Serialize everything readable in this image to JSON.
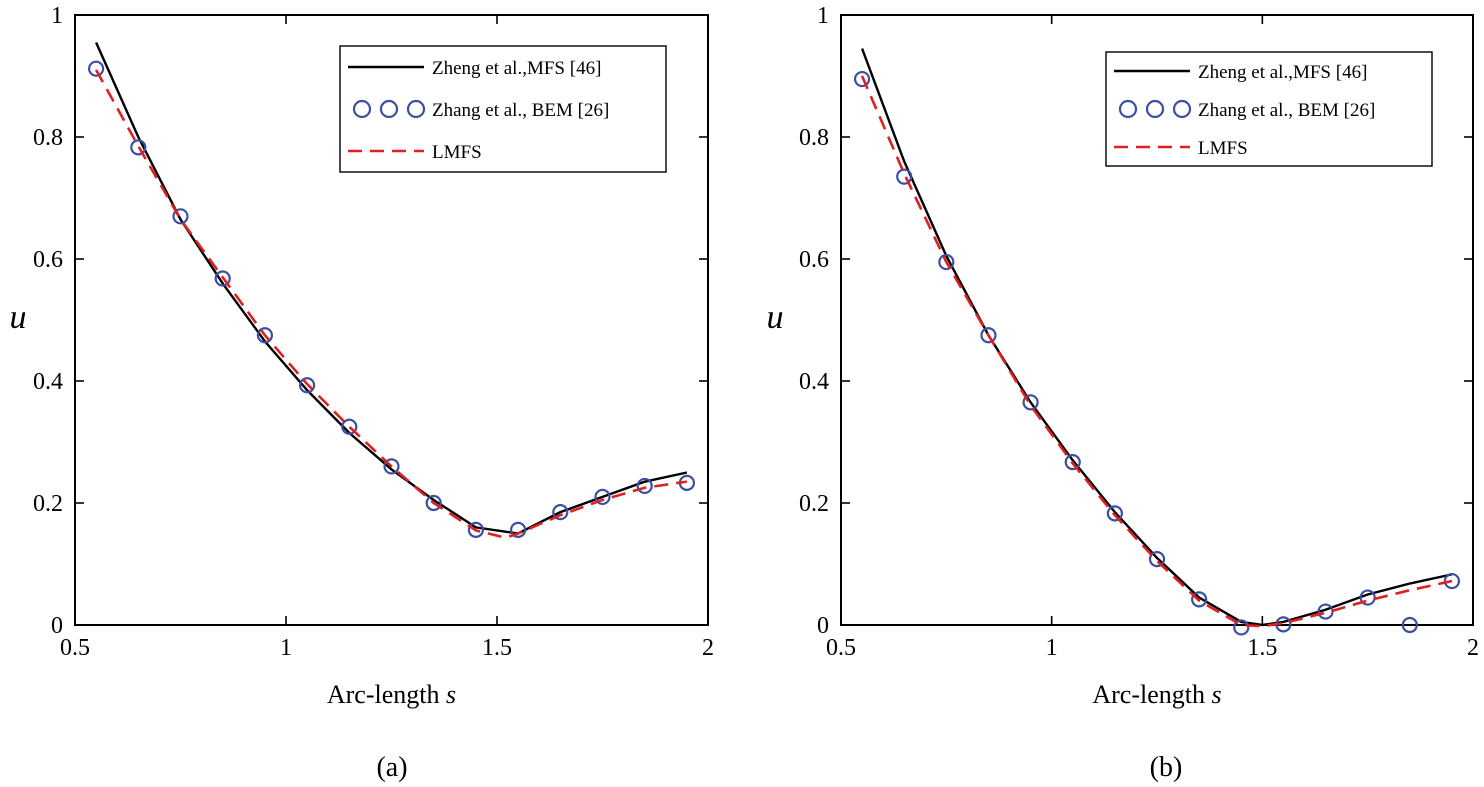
{
  "chart_data": [
    {
      "type": "line",
      "panel_label": "(a)",
      "xlabel": "Arc-length",
      "xlabel_var": "s",
      "ylabel": "u",
      "xlim": [
        0.5,
        2
      ],
      "ylim": [
        0,
        1
      ],
      "xticks": [
        "0.5",
        "1",
        "1.5",
        "2"
      ],
      "yticks": [
        "0",
        "0.2",
        "0.4",
        "0.6",
        "0.8",
        "1"
      ],
      "legend_position": "top-right",
      "series": [
        {
          "name": "Zheng et al.,MFS [46]",
          "style": "solid",
          "color": "#000000",
          "x": [
            0.55,
            0.65,
            0.75,
            0.85,
            0.95,
            1.05,
            1.15,
            1.25,
            1.35,
            1.45,
            1.55,
            1.65,
            1.75,
            1.85,
            1.95
          ],
          "y": [
            0.955,
            0.8,
            0.665,
            0.56,
            0.465,
            0.385,
            0.315,
            0.255,
            0.205,
            0.16,
            0.15,
            0.185,
            0.21,
            0.235,
            0.25
          ]
        },
        {
          "name": "Zhang et al., BEM [26]",
          "style": "circles",
          "color": "#3a4fa3",
          "x": [
            0.55,
            0.65,
            0.75,
            0.85,
            0.95,
            1.05,
            1.15,
            1.25,
            1.35,
            1.45,
            1.55,
            1.65,
            1.75,
            1.85,
            1.95
          ],
          "y": [
            0.912,
            0.783,
            0.67,
            0.568,
            0.475,
            0.393,
            0.325,
            0.26,
            0.2,
            0.156,
            0.156,
            0.185,
            0.21,
            0.228,
            0.233
          ]
        },
        {
          "name": "LMFS",
          "style": "dashed",
          "color": "#e02020",
          "x": [
            0.55,
            0.65,
            0.75,
            0.85,
            0.95,
            1.05,
            1.15,
            1.25,
            1.35,
            1.45,
            1.52,
            1.55,
            1.65,
            1.75,
            1.85,
            1.95
          ],
          "y": [
            0.91,
            0.785,
            0.665,
            0.57,
            0.475,
            0.395,
            0.325,
            0.26,
            0.2,
            0.155,
            0.143,
            0.15,
            0.18,
            0.205,
            0.225,
            0.235
          ]
        }
      ]
    },
    {
      "type": "line",
      "panel_label": "(b)",
      "xlabel": "Arc-length",
      "xlabel_var": "s",
      "ylabel": "u",
      "xlim": [
        0.5,
        2
      ],
      "ylim": [
        0,
        1
      ],
      "xticks": [
        "0.5",
        "1",
        "1.5",
        "2"
      ],
      "yticks": [
        "0",
        "0.2",
        "0.4",
        "0.6",
        "0.8",
        "1"
      ],
      "legend_position": "top-right",
      "series": [
        {
          "name": "Zheng et al.,MFS [46]",
          "style": "solid",
          "color": "#000000",
          "x": [
            0.55,
            0.65,
            0.75,
            0.85,
            0.95,
            1.05,
            1.15,
            1.25,
            1.35,
            1.45,
            1.5,
            1.55,
            1.65,
            1.75,
            1.85,
            1.95
          ],
          "y": [
            0.945,
            0.76,
            0.605,
            0.475,
            0.365,
            0.27,
            0.185,
            0.11,
            0.045,
            0.005,
            0.0,
            0.005,
            0.025,
            0.05,
            0.068,
            0.083
          ]
        },
        {
          "name": "Zhang et al., BEM [26]",
          "style": "circles",
          "color": "#3a4fa3",
          "x": [
            0.55,
            0.65,
            0.75,
            0.85,
            0.95,
            1.05,
            1.15,
            1.25,
            1.35,
            1.45,
            1.55,
            1.65,
            1.75,
            1.85,
            1.95
          ],
          "y": [
            0.895,
            0.735,
            0.595,
            0.475,
            0.365,
            0.267,
            0.183,
            0.108,
            0.042,
            -0.004,
            0.001,
            0.022,
            0.045,
            0.0,
            0.072
          ]
        },
        {
          "name": "LMFS",
          "style": "dashed",
          "color": "#e02020",
          "x": [
            0.55,
            0.65,
            0.75,
            0.85,
            0.95,
            1.05,
            1.15,
            1.25,
            1.35,
            1.45,
            1.5,
            1.55,
            1.65,
            1.75,
            1.85,
            1.95
          ],
          "y": [
            0.9,
            0.74,
            0.595,
            0.475,
            0.36,
            0.265,
            0.18,
            0.105,
            0.04,
            0.0,
            -0.002,
            0.003,
            0.02,
            0.04,
            0.057,
            0.072
          ]
        }
      ]
    }
  ]
}
